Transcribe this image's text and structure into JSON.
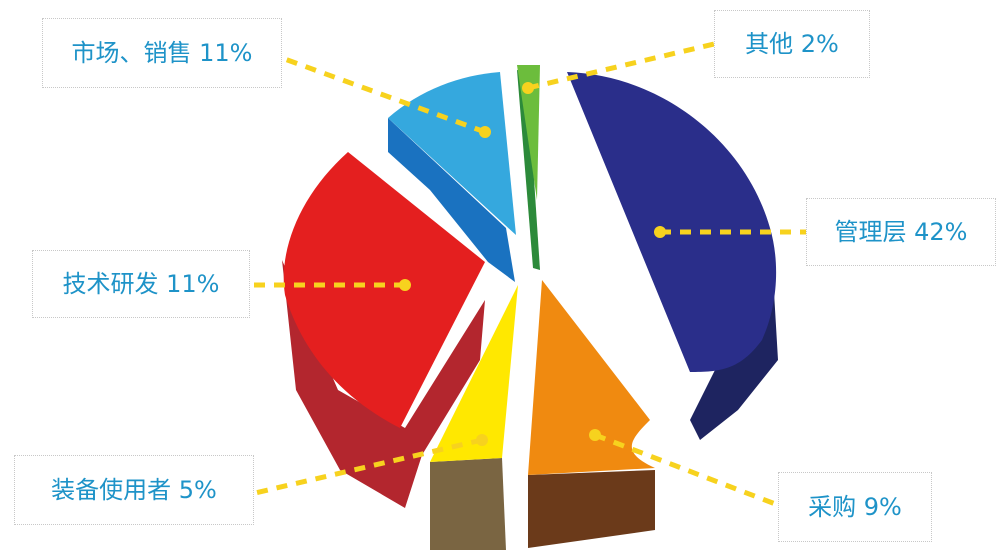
{
  "chart_data": {
    "type": "pie",
    "title": "",
    "slices": [
      {
        "label": "管理层",
        "value": 42,
        "display": "管理层 42%",
        "color": "#2a2e8a",
        "side_color": "#1e2460"
      },
      {
        "label": "采购",
        "value": 9,
        "display": "采购 9%",
        "color": "#f08a10",
        "side_color": "#6b3a1a"
      },
      {
        "label": "装备使用者",
        "value": 5,
        "display": "装备使用者 5%",
        "color": "#ffe800",
        "side_color": "#7a6542"
      },
      {
        "label": "技术研发",
        "value": 11,
        "display": "技术研发 11%",
        "color": "#e41f1f",
        "side_color": "#b3262e"
      },
      {
        "label": "市场、销售",
        "value": 11,
        "display": "市场、销售 11%",
        "color": "#35a8de",
        "side_color": "#1a72c0"
      },
      {
        "label": "其他",
        "value": 2,
        "display": "其他 2%",
        "color": "#6cbd3c",
        "side_color": "#2c8a3a"
      }
    ],
    "leader_color": "#f7d21e",
    "label_text_color": "#1e93c8"
  }
}
